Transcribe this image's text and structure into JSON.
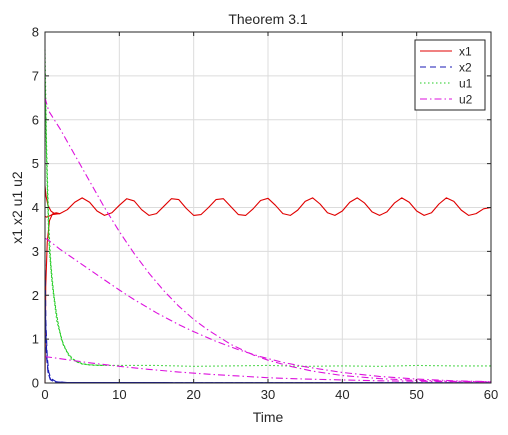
{
  "chart_data": {
    "type": "line",
    "title": "Theorem 3.1",
    "xlabel": "Time",
    "ylabel": "x1 x2 u1 u2",
    "xlim": [
      0,
      60
    ],
    "ylim": [
      0,
      8
    ],
    "x_ticks": [
      0,
      10,
      20,
      30,
      40,
      50,
      60
    ],
    "y_ticks": [
      0,
      1,
      2,
      3,
      4,
      5,
      6,
      7,
      8
    ],
    "grid": true,
    "legend_position": "top-right",
    "series": [
      {
        "name": "x1",
        "color": "#e00000",
        "style": "solid",
        "lines": [
          [
            [
              0,
              0
            ],
            [
              0.1,
              2.2
            ],
            [
              0.3,
              3.2
            ],
            [
              0.6,
              3.7
            ],
            [
              1,
              3.85
            ],
            [
              1.5,
              3.88
            ],
            [
              2,
              3.86
            ],
            [
              3,
              3.95
            ],
            [
              4,
              4.12
            ],
            [
              5,
              4.22
            ],
            [
              6,
              4.12
            ],
            [
              7,
              3.92
            ],
            [
              8,
              3.82
            ],
            [
              9,
              3.88
            ],
            [
              10,
              4.05
            ],
            [
              11,
              4.2
            ],
            [
              12,
              4.15
            ],
            [
              13,
              3.95
            ],
            [
              14,
              3.82
            ],
            [
              15,
              3.86
            ],
            [
              16,
              4.03
            ],
            [
              17,
              4.2
            ],
            [
              18,
              4.18
            ],
            [
              19,
              3.98
            ],
            [
              20,
              3.82
            ],
            [
              21,
              3.84
            ],
            [
              22,
              4.0
            ],
            [
              23,
              4.18
            ],
            [
              24,
              4.2
            ],
            [
              25,
              4.02
            ],
            [
              26,
              3.84
            ],
            [
              27,
              3.82
            ],
            [
              28,
              3.97
            ],
            [
              29,
              4.16
            ],
            [
              30,
              4.21
            ],
            [
              31,
              4.05
            ],
            [
              32,
              3.86
            ],
            [
              33,
              3.82
            ],
            [
              34,
              3.94
            ],
            [
              35,
              4.14
            ],
            [
              36,
              4.22
            ],
            [
              37,
              4.08
            ],
            [
              38,
              3.88
            ],
            [
              39,
              3.82
            ],
            [
              40,
              3.92
            ],
            [
              41,
              4.12
            ],
            [
              42,
              4.22
            ],
            [
              43,
              4.1
            ],
            [
              44,
              3.9
            ],
            [
              45,
              3.82
            ],
            [
              46,
              3.9
            ],
            [
              47,
              4.1
            ],
            [
              48,
              4.22
            ],
            [
              49,
              4.12
            ],
            [
              50,
              3.92
            ],
            [
              51,
              3.82
            ],
            [
              52,
              3.88
            ],
            [
              53,
              4.08
            ],
            [
              54,
              4.22
            ],
            [
              55,
              4.14
            ],
            [
              56,
              3.94
            ],
            [
              57,
              3.82
            ],
            [
              58,
              3.86
            ],
            [
              59,
              3.97
            ],
            [
              60,
              4.0
            ]
          ],
          [
            [
              0,
              4.5
            ],
            [
              0.15,
              4.25
            ],
            [
              0.4,
              4.05
            ],
            [
              0.8,
              3.92
            ],
            [
              1.2,
              3.87
            ],
            [
              2,
              3.86
            ]
          ],
          [
            [
              0,
              3.8
            ],
            [
              0.2,
              3.78
            ],
            [
              0.5,
              3.8
            ],
            [
              1,
              3.84
            ],
            [
              2,
              3.86
            ]
          ]
        ]
      },
      {
        "name": "x2",
        "color": "#1a1ab4",
        "style": "dashed",
        "lines": [
          [
            [
              0,
              2.0
            ],
            [
              0.15,
              1.0
            ],
            [
              0.3,
              0.45
            ],
            [
              0.5,
              0.18
            ],
            [
              0.8,
              0.07
            ],
            [
              1.2,
              0.03
            ],
            [
              2,
              0.01
            ],
            [
              3,
              0.005
            ],
            [
              60,
              0.005
            ]
          ],
          [
            [
              0,
              2.8
            ],
            [
              0.12,
              1.4
            ],
            [
              0.3,
              0.6
            ],
            [
              0.5,
              0.25
            ],
            [
              0.8,
              0.1
            ],
            [
              1.5,
              0.03
            ],
            [
              3,
              0.01
            ],
            [
              60,
              0.005
            ]
          ],
          [
            [
              0,
              1.5
            ],
            [
              0.2,
              0.6
            ],
            [
              0.4,
              0.25
            ],
            [
              0.7,
              0.08
            ],
            [
              1.2,
              0.03
            ],
            [
              3,
              0.01
            ],
            [
              60,
              0.005
            ]
          ]
        ]
      },
      {
        "name": "u1",
        "color": "#22cc22",
        "style": "dotted",
        "lines": [
          [
            [
              0,
              7.6
            ],
            [
              0.2,
              5.5
            ],
            [
              0.5,
              3.6
            ],
            [
              0.8,
              2.7
            ],
            [
              1.2,
              2.0
            ],
            [
              1.8,
              1.3
            ],
            [
              2.5,
              0.85
            ],
            [
              3.5,
              0.55
            ],
            [
              5,
              0.43
            ],
            [
              7,
              0.4
            ],
            [
              10,
              0.4
            ],
            [
              15,
              0.4
            ],
            [
              20,
              0.38
            ],
            [
              25,
              0.39
            ],
            [
              30,
              0.4
            ],
            [
              35,
              0.38
            ],
            [
              40,
              0.39
            ],
            [
              45,
              0.38
            ],
            [
              50,
              0.4
            ],
            [
              55,
              0.39
            ],
            [
              60,
              0.39
            ]
          ],
          [
            [
              0,
              7.2
            ],
            [
              0.2,
              5.2
            ],
            [
              0.5,
              3.3
            ],
            [
              0.9,
              2.4
            ],
            [
              1.5,
              1.6
            ],
            [
              2.2,
              1.0
            ],
            [
              3,
              0.7
            ],
            [
              4,
              0.5
            ],
            [
              5.5,
              0.42
            ],
            [
              8,
              0.4
            ]
          ],
          [
            [
              0,
              6.8
            ],
            [
              0.3,
              4.5
            ],
            [
              0.6,
              3.0
            ],
            [
              1.0,
              2.2
            ],
            [
              1.6,
              1.4
            ],
            [
              2.4,
              0.9
            ],
            [
              3.2,
              0.62
            ],
            [
              4.5,
              0.46
            ],
            [
              6,
              0.41
            ],
            [
              8,
              0.4
            ]
          ]
        ]
      },
      {
        "name": "u2",
        "color": "#dd11dd",
        "style": "dashdot",
        "lines": [
          [
            [
              0,
              6.5
            ],
            [
              0.5,
              6.2
            ],
            [
              2,
              5.8
            ],
            [
              4,
              5.2
            ],
            [
              6,
              4.6
            ],
            [
              8,
              4.0
            ],
            [
              10,
              3.45
            ],
            [
              12,
              2.95
            ],
            [
              14,
              2.5
            ],
            [
              16,
              2.1
            ],
            [
              18,
              1.75
            ],
            [
              20,
              1.45
            ],
            [
              22,
              1.2
            ],
            [
              25,
              0.88
            ],
            [
              28,
              0.64
            ],
            [
              30,
              0.52
            ],
            [
              33,
              0.38
            ],
            [
              36,
              0.27
            ],
            [
              40,
              0.17
            ],
            [
              45,
              0.1
            ],
            [
              50,
              0.06
            ],
            [
              55,
              0.04
            ],
            [
              60,
              0.03
            ]
          ],
          [
            [
              0,
              3.3
            ],
            [
              0.5,
              3.25
            ],
            [
              2,
              3.05
            ],
            [
              5,
              2.7
            ],
            [
              8,
              2.35
            ],
            [
              10,
              2.12
            ],
            [
              12,
              1.9
            ],
            [
              15,
              1.6
            ],
            [
              18,
              1.33
            ],
            [
              20,
              1.17
            ],
            [
              23,
              0.95
            ],
            [
              26,
              0.76
            ],
            [
              29,
              0.6
            ],
            [
              32,
              0.47
            ],
            [
              35,
              0.37
            ],
            [
              40,
              0.24
            ],
            [
              45,
              0.15
            ],
            [
              50,
              0.09
            ],
            [
              55,
              0.05
            ],
            [
              60,
              0.03
            ]
          ],
          [
            [
              0,
              0.6
            ],
            [
              1,
              0.58
            ],
            [
              3,
              0.53
            ],
            [
              6,
              0.46
            ],
            [
              10,
              0.38
            ],
            [
              14,
              0.31
            ],
            [
              18,
              0.25
            ],
            [
              22,
              0.2
            ],
            [
              26,
              0.16
            ],
            [
              30,
              0.12
            ],
            [
              35,
              0.09
            ],
            [
              40,
              0.07
            ],
            [
              45,
              0.05
            ],
            [
              50,
              0.04
            ],
            [
              55,
              0.03
            ],
            [
              60,
              0.02
            ]
          ]
        ]
      }
    ]
  }
}
